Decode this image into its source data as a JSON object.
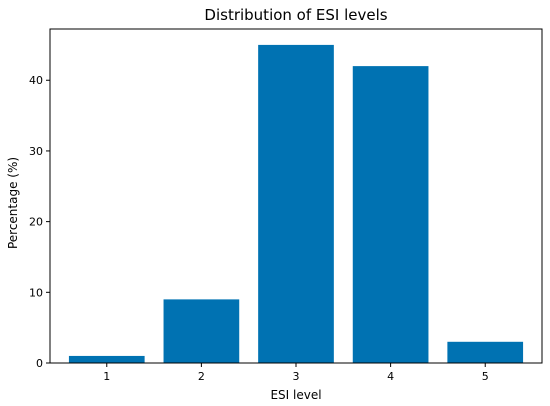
{
  "chart_data": {
    "type": "bar",
    "title": "Distribution of ESI levels",
    "xlabel": "ESI level",
    "ylabel": "Percentage (%)",
    "categories": [
      "1",
      "2",
      "3",
      "4",
      "5"
    ],
    "values": [
      1,
      9,
      45,
      42,
      3
    ],
    "ylim": [
      0,
      47.25
    ],
    "yticks": [
      0,
      10,
      20,
      30,
      40
    ],
    "bar_color": "#0072b2",
    "grid": false,
    "legend": "none"
  }
}
